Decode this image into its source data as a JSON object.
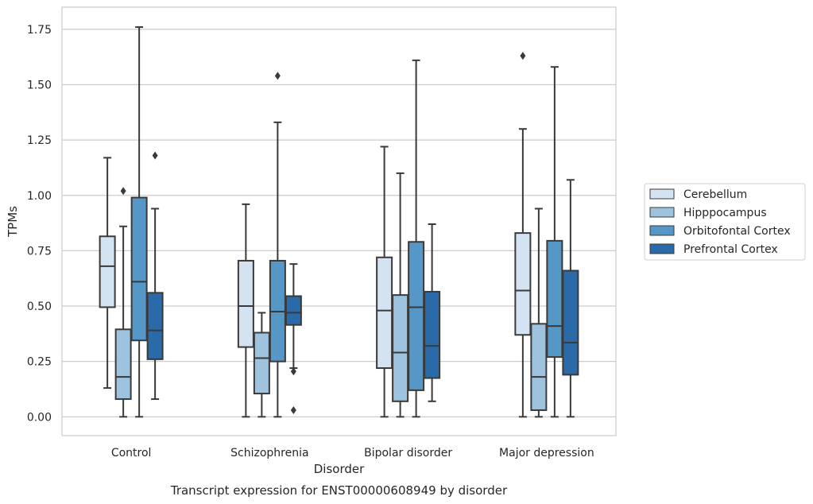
{
  "chart_data": {
    "type": "box",
    "title": "",
    "caption": "Transcript expression for ENST00000608949 by disorder",
    "xlabel": "Disorder",
    "ylabel": "TPMs",
    "ylim": [
      -0.085,
      1.85
    ],
    "yticks": [
      "0.00",
      "0.25",
      "0.50",
      "0.75",
      "1.00",
      "1.25",
      "1.50",
      "1.75"
    ],
    "grid": true,
    "legend_position": "right",
    "categories": [
      "Control",
      "Schizophrenia",
      "Bipolar disorder",
      "Major depression"
    ],
    "series": [
      {
        "name": "Cerebellum",
        "color": "#d4e3f2",
        "boxes": [
          {
            "whislo": 0.13,
            "q1": 0.495,
            "med": 0.68,
            "q3": 0.815,
            "whishi": 1.17,
            "fliers": []
          },
          {
            "whislo": 0.0,
            "q1": 0.315,
            "med": 0.5,
            "q3": 0.705,
            "whishi": 0.96,
            "fliers": []
          },
          {
            "whislo": 0.0,
            "q1": 0.22,
            "med": 0.48,
            "q3": 0.72,
            "whishi": 1.22,
            "fliers": []
          },
          {
            "whislo": 0.0,
            "q1": 0.37,
            "med": 0.57,
            "q3": 0.83,
            "whishi": 1.3,
            "fliers": [
              1.63
            ]
          }
        ]
      },
      {
        "name": "Hipppocampus",
        "color": "#9dc3df",
        "boxes": [
          {
            "whislo": 0.0,
            "q1": 0.08,
            "med": 0.18,
            "q3": 0.395,
            "whishi": 0.86,
            "fliers": [
              1.02
            ]
          },
          {
            "whislo": 0.0,
            "q1": 0.105,
            "med": 0.265,
            "q3": 0.38,
            "whishi": 0.47,
            "fliers": []
          },
          {
            "whislo": 0.0,
            "q1": 0.07,
            "med": 0.29,
            "q3": 0.55,
            "whishi": 1.1,
            "fliers": []
          },
          {
            "whislo": 0.0,
            "q1": 0.03,
            "med": 0.18,
            "q3": 0.42,
            "whishi": 0.94,
            "fliers": []
          }
        ]
      },
      {
        "name": "Orbitofontal Cortex",
        "color": "#5597c6",
        "boxes": [
          {
            "whislo": 0.0,
            "q1": 0.345,
            "med": 0.61,
            "q3": 0.99,
            "whishi": 1.76,
            "fliers": []
          },
          {
            "whislo": 0.0,
            "q1": 0.25,
            "med": 0.475,
            "q3": 0.705,
            "whishi": 1.33,
            "fliers": [
              1.54
            ]
          },
          {
            "whislo": 0.0,
            "q1": 0.12,
            "med": 0.495,
            "q3": 0.79,
            "whishi": 1.61,
            "fliers": []
          },
          {
            "whislo": 0.0,
            "q1": 0.27,
            "med": 0.41,
            "q3": 0.795,
            "whishi": 1.58,
            "fliers": []
          }
        ]
      },
      {
        "name": "Prefrontal Cortex",
        "color": "#2a6aa8",
        "boxes": [
          {
            "whislo": 0.08,
            "q1": 0.26,
            "med": 0.39,
            "q3": 0.56,
            "whishi": 0.94,
            "fliers": [
              1.18
            ]
          },
          {
            "whislo": 0.22,
            "q1": 0.415,
            "med": 0.47,
            "q3": 0.545,
            "whishi": 0.69,
            "fliers": [
              0.205,
              0.03
            ]
          },
          {
            "whislo": 0.07,
            "q1": 0.175,
            "med": 0.32,
            "q3": 0.565,
            "whishi": 0.87,
            "fliers": []
          },
          {
            "whislo": 0.0,
            "q1": 0.19,
            "med": 0.335,
            "q3": 0.66,
            "whishi": 1.07,
            "fliers": []
          }
        ]
      }
    ]
  }
}
